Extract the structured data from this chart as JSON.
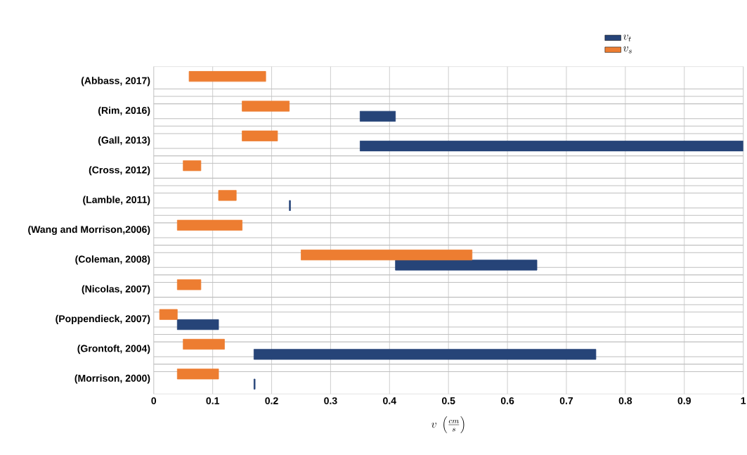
{
  "chart_data": {
    "type": "bar",
    "orientation": "horizontal",
    "xlabel": "v\\ \\left(\\frac{cm}{s}\\right)",
    "categories": [
      "(Abbass, 2017)",
      "(Rim, 2016)",
      "(Gall, 2013)",
      "(Cross, 2012)",
      "(Lamble, 2011)",
      "(Wang and Morrison,2006)",
      "(Coleman, 2008)",
      "(Nicolas, 2007)",
      "(Poppendieck, 2007)",
      "(Grontoft, 2004)",
      "(Morrison, 2000)"
    ],
    "series": [
      {
        "name": "v_t",
        "color": "#264478",
        "base": [
          null,
          0.35,
          0.35,
          null,
          0.23,
          null,
          0.41,
          null,
          0.04,
          0.17,
          0.17
        ],
        "values": [
          null,
          0.06,
          0.65,
          null,
          0.002,
          null,
          0.24,
          null,
          0.07,
          0.58,
          0.002
        ]
      },
      {
        "name": "v_s",
        "color": "#ed7d31",
        "base": [
          0.06,
          0.15,
          0.15,
          0.05,
          0.11,
          0.04,
          0.25,
          0.04,
          0.01,
          0.05,
          0.04
        ],
        "values": [
          0.13,
          0.08,
          0.06,
          0.03,
          0.03,
          0.11,
          0.29,
          0.04,
          0.03,
          0.07,
          0.07
        ]
      }
    ],
    "xlim": [
      0,
      1
    ],
    "xticks": [
      0,
      0.1,
      0.2,
      0.3,
      0.4,
      0.5,
      0.6,
      0.7,
      0.8,
      0.9,
      1
    ],
    "grid": true,
    "legend": "top right"
  }
}
